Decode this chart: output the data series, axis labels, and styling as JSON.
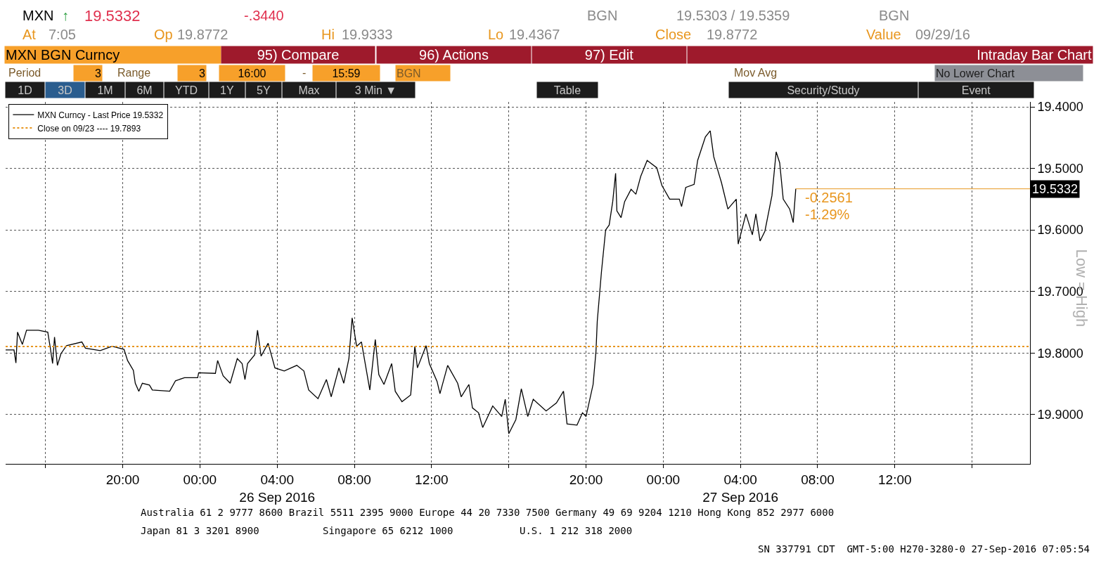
{
  "chart_data": {
    "type": "line",
    "ylabel": "Low = High",
    "xlim": [
      "2016-09-25T13:56",
      "2016-09-27T19:00"
    ],
    "xticks": [
      {
        "value": "2016-09-25T16:00",
        "label": null
      },
      {
        "value": "2016-09-25T20:00",
        "label": "20:00"
      },
      {
        "value": "2016-09-26T00:00",
        "label": "00:00"
      },
      {
        "value": "2016-09-26T04:00",
        "label": "04:00\n26 Sep 2016"
      },
      {
        "value": "2016-09-26T08:00",
        "label": "08:00"
      },
      {
        "value": "2016-09-26T12:00",
        "label": "12:00"
      },
      {
        "value": "2016-09-26T16:00",
        "label": null
      },
      {
        "value": "2016-09-26T20:00",
        "label": "20:00"
      },
      {
        "value": "2016-09-27T00:00",
        "label": "00:00"
      },
      {
        "value": "2016-09-27T04:00",
        "label": "04:00\n27 Sep 2016"
      },
      {
        "value": "2016-09-27T08:00",
        "label": "08:00"
      },
      {
        "value": "2016-09-27T12:00",
        "label": "12:00"
      },
      {
        "value": "2016-09-27T16:00",
        "label": null
      }
    ],
    "ylim": [
      19.98,
      19.392
    ],
    "yticks": [
      {
        "value": 19.4,
        "label": "19.4000"
      },
      {
        "value": 19.5,
        "label": "19.5000"
      },
      {
        "value": 19.6,
        "label": "19.6000"
      },
      {
        "value": 19.7,
        "label": "19.7000"
      },
      {
        "value": 19.8,
        "label": "19.8000"
      },
      {
        "value": 19.9,
        "label": "19.9000"
      }
    ],
    "grid": true,
    "legend": "top left",
    "marker": "none",
    "line_style": "solid",
    "x": [
      "2016-09-25T13:56",
      "2016-09-25T14:22",
      "2016-09-25T14:28",
      "2016-09-25T14:33",
      "2016-09-25T14:48",
      "2016-09-25T15:01",
      "2016-09-25T15:38",
      "2016-09-25T16:07",
      "2016-09-25T16:15",
      "2016-09-25T16:22",
      "2016-09-25T16:28",
      "2016-09-25T16:37",
      "2016-09-25T16:48",
      "2016-09-25T17:05",
      "2016-09-25T17:53",
      "2016-09-25T18:04",
      "2016-09-25T18:50",
      "2016-09-25T19:27",
      "2016-09-25T20:04",
      "2016-09-25T20:15",
      "2016-09-25T20:33",
      "2016-09-25T20:39",
      "2016-09-25T20:50",
      "2016-09-25T21:01",
      "2016-09-25T21:23",
      "2016-09-25T21:32",
      "2016-09-25T22:26",
      "2016-09-25T22:44",
      "2016-09-25T23:12",
      "2016-09-25T23:53",
      "2016-09-25T23:56",
      "2016-09-26T00:48",
      "2016-09-26T00:55",
      "2016-09-26T01:12",
      "2016-09-26T01:34",
      "2016-09-26T01:56",
      "2016-09-26T02:11",
      "2016-09-26T02:20",
      "2016-09-26T02:28",
      "2016-09-26T02:50",
      "2016-09-26T02:59",
      "2016-09-26T03:10",
      "2016-09-26T03:32",
      "2016-09-26T03:53",
      "2016-09-26T04:22",
      "2016-09-26T05:01",
      "2016-09-26T05:23",
      "2016-09-26T05:38",
      "2016-09-26T06:07",
      "2016-09-26T06:33",
      "2016-09-26T06:48",
      "2016-09-26T07:12",
      "2016-09-26T07:27",
      "2016-09-26T07:43",
      "2016-09-26T07:53",
      "2016-09-26T08:07",
      "2016-09-26T08:22",
      "2016-09-26T08:48",
      "2016-09-26T09:05",
      "2016-09-26T09:16",
      "2016-09-26T09:32",
      "2016-09-26T09:56",
      "2016-09-26T10:07",
      "2016-09-26T10:28",
      "2016-09-26T10:55",
      "2016-09-26T11:08",
      "2016-09-26T11:16",
      "2016-09-26T11:43",
      "2016-09-26T11:53",
      "2016-09-26T12:17",
      "2016-09-26T12:26",
      "2016-09-26T12:50",
      "2016-09-26T13:21",
      "2016-09-26T13:32",
      "2016-09-26T13:56",
      "2016-09-26T14:07",
      "2016-09-26T14:26",
      "2016-09-26T14:39",
      "2016-09-26T15:10",
      "2016-09-26T15:38",
      "2016-09-26T15:49",
      "2016-09-26T16:00",
      "2016-09-26T16:22",
      "2016-09-26T16:39",
      "2016-09-26T16:59",
      "2016-09-26T17:16",
      "2016-09-26T17:56",
      "2016-09-26T18:28",
      "2016-09-26T18:50",
      "2016-09-26T19:01",
      "2016-09-26T19:32",
      "2016-09-26T19:49",
      "2016-09-26T20:00",
      "2016-09-26T20:22",
      "2016-09-26T20:31",
      "2016-09-26T20:35",
      "2016-09-26T20:48",
      "2016-09-26T21:01",
      "2016-09-26T21:12",
      "2016-09-26T21:23",
      "2016-09-26T21:32",
      "2016-09-26T21:36",
      "2016-09-26T21:49",
      "2016-09-26T22:00",
      "2016-09-26T22:20",
      "2016-09-26T22:35",
      "2016-09-26T22:50",
      "2016-09-26T23:10",
      "2016-09-26T23:40",
      "2016-09-26T23:56",
      "2016-09-27T00:20",
      "2016-09-27T00:50",
      "2016-09-27T00:57",
      "2016-09-27T01:10",
      "2016-09-27T01:36",
      "2016-09-27T01:47",
      "2016-09-27T02:11",
      "2016-09-27T02:26",
      "2016-09-27T02:37",
      "2016-09-27T03:01",
      "2016-09-27T03:21",
      "2016-09-27T03:47",
      "2016-09-27T03:53",
      "2016-09-27T04:17",
      "2016-09-27T04:37",
      "2016-09-27T04:48",
      "2016-09-27T05:01",
      "2016-09-27T05:16",
      "2016-09-27T05:38",
      "2016-09-27T05:51",
      "2016-09-27T06:02",
      "2016-09-27T06:13",
      "2016-09-27T06:33",
      "2016-09-27T06:44",
      "2016-09-27T06:52"
    ],
    "series": [
      {
        "name": "MXN Curncy - Last Price 19.5332",
        "color": "#000000",
        "values": [
          19.795,
          19.795,
          19.816,
          19.766,
          19.786,
          19.763,
          19.763,
          19.766,
          19.792,
          19.817,
          19.774,
          19.82,
          19.801,
          19.788,
          19.782,
          19.792,
          19.796,
          19.789,
          19.794,
          19.812,
          19.828,
          19.849,
          19.862,
          19.849,
          19.852,
          19.86,
          19.862,
          19.845,
          19.84,
          19.84,
          19.832,
          19.833,
          19.812,
          19.837,
          19.849,
          19.809,
          19.817,
          19.843,
          19.817,
          19.803,
          19.763,
          19.805,
          19.784,
          19.824,
          19.829,
          19.82,
          19.829,
          19.86,
          19.874,
          19.843,
          19.871,
          19.824,
          19.849,
          19.809,
          19.743,
          19.789,
          19.782,
          19.86,
          19.778,
          19.835,
          19.851,
          19.817,
          19.862,
          19.879,
          19.868,
          19.789,
          19.824,
          19.788,
          19.817,
          19.846,
          19.866,
          19.82,
          19.849,
          19.871,
          19.851,
          19.889,
          19.897,
          19.921,
          19.886,
          19.903,
          19.875,
          19.931,
          19.908,
          19.858,
          19.903,
          19.875,
          19.894,
          19.881,
          19.862,
          19.915,
          19.917,
          19.897,
          19.903,
          19.851,
          19.797,
          19.748,
          19.668,
          19.6,
          19.592,
          19.554,
          19.508,
          19.569,
          19.58,
          19.554,
          19.534,
          19.542,
          19.513,
          19.487,
          19.499,
          19.528,
          19.55,
          19.55,
          19.562,
          19.531,
          19.526,
          19.487,
          19.449,
          19.439,
          19.481,
          19.523,
          19.566,
          19.55,
          19.623,
          19.574,
          19.608,
          19.574,
          19.618,
          19.602,
          19.544,
          19.473,
          19.491,
          19.55,
          19.566,
          19.588,
          19.5332
        ]
      }
    ],
    "ref_lines": [
      {
        "axis": "y",
        "value": 19.7893,
        "label": "Close on 09/23 ---- 19.7893",
        "color": "#e8961e",
        "line_style": "dotted"
      },
      {
        "axis": "y",
        "value": 19.5332,
        "label": "19.5332",
        "color": "#e8961e"
      }
    ],
    "annotations": [
      "MXN",
      "↑",
      "19.5332",
      "-.3440",
      "BGN",
      "19.5303 / 19.5359",
      "BGN",
      "At",
      "7:05",
      "Op",
      "19.8772",
      "Hi",
      "19.9333",
      "Lo",
      "19.4367",
      "Close",
      "19.8772",
      "Value",
      "09/29/16",
      "MXN BGN Curncy",
      "95) Compare",
      "96) Actions",
      "97) Edit",
      "Intraday Bar Chart",
      "Period",
      "3",
      "Range",
      "3",
      "16:00",
      "-",
      "15:59",
      "BGN",
      "Mov Avg",
      "No Lower Chart",
      "1D",
      "3D",
      "1M",
      "6M",
      "YTD",
      "1Y",
      "5Y",
      "Max",
      "3 Min ▼",
      "Table",
      "Security/Study",
      "Event",
      "Australia 61 2 9777 8600 Brazil 5511 2395 9000 Europe 44 20 7330 7500 Germany 49 69 9204 1210 Hong Kong 852 2977 6000",
      "Japan 81 3 3201 8900",
      "Singapore 65 6212 1000",
      "U.S. 1 212 318 2000",
      "SN 337791 CDT  GMT-5:00 H270-3280-0 27-Sep-2016 07:05:54",
      "-0.2561",
      "-1.29%"
    ]
  }
}
